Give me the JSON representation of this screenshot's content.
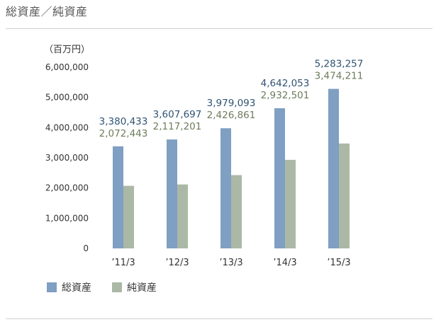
{
  "header": {
    "title": "総資産／純資産"
  },
  "chart_data": {
    "type": "bar",
    "unit_label": "（百万円）",
    "categories": [
      "’11/3",
      "’12/3",
      "’13/3",
      "’14/3",
      "’15/3"
    ],
    "series": [
      {
        "name": "総資産",
        "color": "#7f9fc3",
        "label_color": "#2f5373",
        "values": [
          3380433,
          3607697,
          3979093,
          4642053,
          5283257
        ],
        "labels": [
          "3,380,433",
          "3,607,697",
          "3,979,093",
          "4,642,053",
          "5,283,257"
        ]
      },
      {
        "name": "純資産",
        "color": "#abb8a6",
        "label_color": "#6d7d5c",
        "values": [
          2072443,
          2117201,
          2426861,
          2932501,
          3474211
        ],
        "labels": [
          "2,072,443",
          "2,117,201",
          "2,426,861",
          "2,932,501",
          "3,474,211"
        ]
      }
    ],
    "yticks": [
      0,
      1000000,
      2000000,
      3000000,
      4000000,
      5000000,
      6000000
    ],
    "ytick_labels": [
      "0",
      "1,000,000",
      "2,000,000",
      "3,000,000",
      "4,000,000",
      "5,000,000",
      "6,000,000"
    ],
    "ylim": [
      0,
      6000000
    ],
    "grid": false,
    "legend_position": "bottom-left"
  }
}
